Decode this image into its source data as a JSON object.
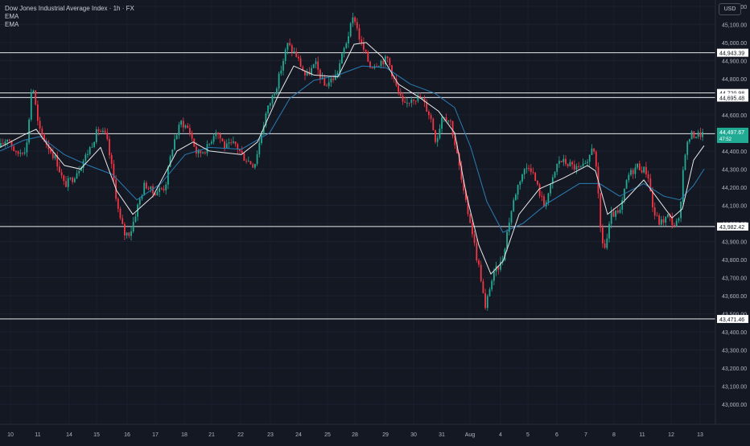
{
  "chart_data": {
    "type": "candlestick",
    "title": "Dow Jones Industrial Average Index · 1h · FX",
    "indicators": [
      "EMA",
      "EMA"
    ],
    "currency": "USD",
    "y_axis": {
      "range": [
        43000,
        45250
      ],
      "ticks": [
        {
          "value": 45200,
          "label": "45,200.00"
        },
        {
          "value": 45100,
          "label": "45,100.00"
        },
        {
          "value": 45000,
          "label": "45,000.00"
        },
        {
          "value": 44900,
          "label": "44,900.00"
        },
        {
          "value": 44800,
          "label": "44,800.00"
        },
        {
          "value": 44700,
          "label": "44,700.00"
        },
        {
          "value": 44600,
          "label": "44,600.00"
        },
        {
          "value": 44400,
          "label": "44,400.00"
        },
        {
          "value": 44300,
          "label": "44,300.00"
        },
        {
          "value": 44200,
          "label": "44,200.00"
        },
        {
          "value": 44100,
          "label": "44,100.00"
        },
        {
          "value": 44000,
          "label": "44,000.00"
        },
        {
          "value": 43900,
          "label": "43,900.00"
        },
        {
          "value": 43800,
          "label": "43,800.00"
        },
        {
          "value": 43700,
          "label": "43,700.00"
        },
        {
          "value": 43600,
          "label": "43,600.00"
        },
        {
          "value": 43500,
          "label": "43,500.00"
        },
        {
          "value": 43400,
          "label": "43,400.00"
        },
        {
          "value": 43300,
          "label": "43,300.00"
        },
        {
          "value": 43200,
          "label": "43,200.00"
        },
        {
          "value": 43100,
          "label": "43,100.00"
        },
        {
          "value": 43000,
          "label": "43,000.00"
        }
      ]
    },
    "x_labels": [
      "10",
      "11",
      "14",
      "15",
      "16",
      "17",
      "18",
      "21",
      "22",
      "23",
      "24",
      "25",
      "28",
      "29",
      "30",
      "31",
      "Aug",
      "4",
      "5",
      "6",
      "7",
      "8",
      "11",
      "12",
      "13"
    ],
    "horizontal_levels": [
      {
        "value": 44943.39,
        "label": "44,943.39"
      },
      {
        "value": 44720.98,
        "label": "44,720.98"
      },
      {
        "value": 44695.48,
        "label": "44,695.48"
      },
      {
        "value": 44495.67,
        "label": "44,495.67"
      },
      {
        "value": 43982.42,
        "label": "43,982.42"
      },
      {
        "value": 43471.46,
        "label": "43,471.46"
      }
    ],
    "last_price": {
      "value": 44497.67,
      "label": "44,497.67",
      "countdown": "47:52"
    },
    "anchor_points": [
      [
        0,
        44420
      ],
      [
        10,
        44480
      ],
      [
        20,
        44380
      ],
      [
        33,
        44420
      ],
      [
        40,
        44790
      ],
      [
        48,
        44520
      ],
      [
        58,
        44440
      ],
      [
        70,
        44350
      ],
      [
        80,
        44210
      ],
      [
        90,
        44250
      ],
      [
        100,
        44320
      ],
      [
        110,
        44400
      ],
      [
        122,
        44520
      ],
      [
        132,
        44480
      ],
      [
        140,
        44280
      ],
      [
        148,
        44040
      ],
      [
        155,
        43940
      ],
      [
        162,
        43950
      ],
      [
        170,
        44080
      ],
      [
        180,
        44220
      ],
      [
        190,
        44170
      ],
      [
        205,
        44200
      ],
      [
        215,
        44440
      ],
      [
        225,
        44560
      ],
      [
        235,
        44520
      ],
      [
        245,
        44380
      ],
      [
        258,
        44420
      ],
      [
        268,
        44520
      ],
      [
        280,
        44420
      ],
      [
        292,
        44440
      ],
      [
        302,
        44370
      ],
      [
        316,
        44320
      ],
      [
        330,
        44600
      ],
      [
        345,
        44780
      ],
      [
        357,
        44990
      ],
      [
        368,
        44930
      ],
      [
        380,
        44810
      ],
      [
        392,
        44880
      ],
      [
        403,
        44760
      ],
      [
        418,
        44820
      ],
      [
        430,
        45000
      ],
      [
        440,
        45150
      ],
      [
        448,
        45000
      ],
      [
        460,
        44870
      ],
      [
        470,
        44890
      ],
      [
        482,
        44910
      ],
      [
        492,
        44760
      ],
      [
        502,
        44640
      ],
      [
        512,
        44700
      ],
      [
        524,
        44690
      ],
      [
        535,
        44590
      ],
      [
        542,
        44450
      ],
      [
        550,
        44610
      ],
      [
        560,
        44560
      ],
      [
        570,
        44330
      ],
      [
        577,
        44140
      ],
      [
        585,
        44000
      ],
      [
        592,
        43820
      ],
      [
        597,
        43720
      ],
      [
        603,
        43520
      ],
      [
        609,
        43660
      ],
      [
        616,
        43740
      ],
      [
        624,
        43790
      ],
      [
        632,
        44000
      ],
      [
        640,
        44160
      ],
      [
        648,
        44270
      ],
      [
        658,
        44330
      ],
      [
        668,
        44200
      ],
      [
        676,
        44100
      ],
      [
        684,
        44200
      ],
      [
        694,
        44350
      ],
      [
        706,
        44330
      ],
      [
        718,
        44300
      ],
      [
        730,
        44320
      ],
      [
        737,
        44460
      ],
      [
        742,
        44240
      ],
      [
        747,
        43920
      ],
      [
        752,
        43860
      ],
      [
        760,
        44050
      ],
      [
        770,
        44050
      ],
      [
        780,
        44260
      ],
      [
        792,
        44320
      ],
      [
        805,
        44280
      ],
      [
        812,
        44060
      ],
      [
        820,
        44000
      ],
      [
        830,
        44040
      ],
      [
        838,
        43990
      ],
      [
        845,
        44020
      ],
      [
        850,
        44380
      ],
      [
        858,
        44490
      ],
      [
        868,
        44490
      ],
      [
        875,
        44497.67
      ]
    ],
    "ema_fast": [
      [
        0,
        44420
      ],
      [
        30,
        44490
      ],
      [
        45,
        44520
      ],
      [
        60,
        44430
      ],
      [
        80,
        44320
      ],
      [
        100,
        44300
      ],
      [
        125,
        44420
      ],
      [
        145,
        44180
      ],
      [
        165,
        44050
      ],
      [
        190,
        44150
      ],
      [
        220,
        44400
      ],
      [
        240,
        44450
      ],
      [
        260,
        44400
      ],
      [
        300,
        44380
      ],
      [
        320,
        44450
      ],
      [
        345,
        44700
      ],
      [
        365,
        44870
      ],
      [
        390,
        44820
      ],
      [
        420,
        44810
      ],
      [
        440,
        44990
      ],
      [
        455,
        45000
      ],
      [
        475,
        44920
      ],
      [
        495,
        44770
      ],
      [
        520,
        44700
      ],
      [
        545,
        44620
      ],
      [
        565,
        44500
      ],
      [
        580,
        44150
      ],
      [
        595,
        43880
      ],
      [
        610,
        43720
      ],
      [
        625,
        43790
      ],
      [
        645,
        44050
      ],
      [
        670,
        44190
      ],
      [
        700,
        44250
      ],
      [
        730,
        44320
      ],
      [
        740,
        44290
      ],
      [
        755,
        44050
      ],
      [
        775,
        44120
      ],
      [
        800,
        44240
      ],
      [
        815,
        44150
      ],
      [
        835,
        44030
      ],
      [
        848,
        44080
      ],
      [
        862,
        44350
      ],
      [
        875,
        44430
      ]
    ],
    "ema_slow": [
      [
        0,
        44400
      ],
      [
        30,
        44460
      ],
      [
        50,
        44480
      ],
      [
        80,
        44380
      ],
      [
        110,
        44320
      ],
      [
        140,
        44270
      ],
      [
        170,
        44130
      ],
      [
        200,
        44220
      ],
      [
        230,
        44380
      ],
      [
        260,
        44420
      ],
      [
        300,
        44410
      ],
      [
        335,
        44500
      ],
      [
        360,
        44690
      ],
      [
        390,
        44790
      ],
      [
        420,
        44820
      ],
      [
        450,
        44870
      ],
      [
        480,
        44860
      ],
      [
        510,
        44770
      ],
      [
        540,
        44720
      ],
      [
        565,
        44640
      ],
      [
        585,
        44420
      ],
      [
        605,
        44120
      ],
      [
        625,
        43950
      ],
      [
        650,
        44000
      ],
      [
        680,
        44110
      ],
      [
        720,
        44220
      ],
      [
        745,
        44220
      ],
      [
        770,
        44150
      ],
      [
        800,
        44220
      ],
      [
        825,
        44150
      ],
      [
        845,
        44130
      ],
      [
        862,
        44210
      ],
      [
        875,
        44300
      ]
    ]
  }
}
